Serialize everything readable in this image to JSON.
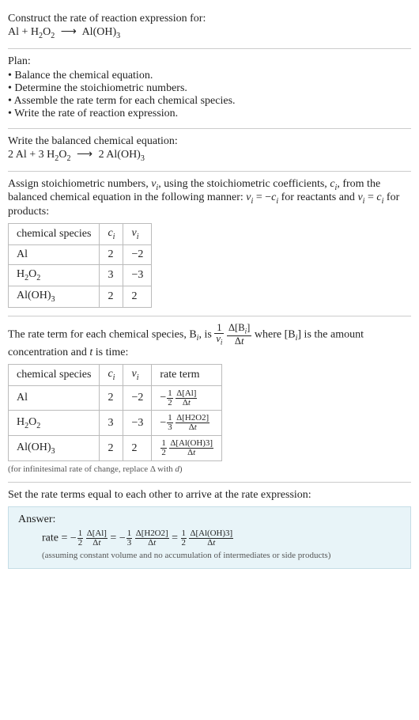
{
  "intro": {
    "prompt": "Construct the rate of reaction expression for:",
    "reactant1": "Al",
    "plus": " + ",
    "reactant2_base": "H",
    "reactant2_s1": "2",
    "reactant2_mid": "O",
    "reactant2_s2": "2",
    "arrow": "⟶",
    "product_base": "Al(OH)",
    "product_s": "3"
  },
  "plan": {
    "title": "Plan:",
    "items": [
      "Balance the chemical equation.",
      "Determine the stoichiometric numbers.",
      "Assemble the rate term for each chemical species.",
      "Write the rate of reaction expression."
    ]
  },
  "balanced": {
    "title": "Write the balanced chemical equation:",
    "c1": "2 ",
    "r1": "Al",
    "plus1": " + ",
    "c2": "3 ",
    "r2b": "H",
    "r2s1": "2",
    "r2m": "O",
    "r2s2": "2",
    "arrow": "⟶",
    "c3": "2 ",
    "pb": "Al(OH)",
    "ps": "3"
  },
  "stoich_text": {
    "p1": "Assign stoichiometric numbers, ",
    "nu": "ν",
    "i": "i",
    "p2": ", using the stoichiometric coefficients, ",
    "c": "c",
    "p3": ", from the balanced chemical equation in the following manner: ",
    "eq1a": "ν",
    "eq1b": "i",
    "eq1c": " = −",
    "eq1d": "c",
    "eq1e": "i",
    "p4": " for reactants and ",
    "eq2a": "ν",
    "eq2b": "i",
    "eq2c": " = ",
    "eq2d": "c",
    "eq2e": "i",
    "p5": " for products:"
  },
  "stoich_table": {
    "h1": "chemical species",
    "h2_a": "c",
    "h2_b": "i",
    "h3_a": "ν",
    "h3_b": "i",
    "rows": [
      {
        "sp_a": "Al",
        "sp_b": "",
        "sp_c": "",
        "sp_d": "",
        "c": "2",
        "v": "−2"
      },
      {
        "sp_a": "H",
        "sp_b": "2",
        "sp_c": "O",
        "sp_d": "2",
        "c": "3",
        "v": "−3"
      },
      {
        "sp_a": "Al(OH)",
        "sp_b": "3",
        "sp_c": "",
        "sp_d": "",
        "c": "2",
        "v": "2"
      }
    ]
  },
  "rateterm_text": {
    "p1": "The rate term for each chemical species, B",
    "i": "i",
    "p2": ", is ",
    "fr1n": "1",
    "fr1d_a": "ν",
    "fr1d_b": "i",
    "fr2n": "Δ[B",
    "fr2n_i": "i",
    "fr2n_end": "]",
    "fr2d": "Δ",
    "fr2d_t": "t",
    "p3": " where [B",
    "p3i": "i",
    "p3end": "] is the amount concentration and ",
    "t": "t",
    "p4": " is time:"
  },
  "rate_table": {
    "h1": "chemical species",
    "h2_a": "c",
    "h2_b": "i",
    "h3_a": "ν",
    "h3_b": "i",
    "h4": "rate term",
    "rows": [
      {
        "sp_a": "Al",
        "sp_b": "",
        "sp_c": "",
        "sp_d": "",
        "c": "2",
        "v": "−2",
        "neg": "−",
        "fn": "1",
        "fd": "2",
        "dn": "Δ[Al]",
        "dd_a": "Δ",
        "dd_t": "t"
      },
      {
        "sp_a": "H",
        "sp_b": "2",
        "sp_c": "O",
        "sp_d": "2",
        "c": "3",
        "v": "−3",
        "neg": "−",
        "fn": "1",
        "fd": "3",
        "dn": "Δ[H2O2]",
        "dd_a": "Δ",
        "dd_t": "t"
      },
      {
        "sp_a": "Al(OH)",
        "sp_b": "3",
        "sp_c": "",
        "sp_d": "",
        "c": "2",
        "v": "2",
        "neg": "",
        "fn": "1",
        "fd": "2",
        "dn": "Δ[Al(OH)3]",
        "dd_a": "Δ",
        "dd_t": "t"
      }
    ],
    "note": "(for infinitesimal rate of change, replace Δ with ",
    "note_d": "d",
    "note_end": ")"
  },
  "final_text": "Set the rate terms equal to each other to arrive at the rate expression:",
  "answer": {
    "hdr": "Answer:",
    "rate": "rate = ",
    "t1_neg": "−",
    "t1_fn": "1",
    "t1_fd": "2",
    "t1_dn": "Δ[Al]",
    "t1_dd_a": "Δ",
    "t1_dd_t": "t",
    "eq": " = ",
    "t2_neg": "−",
    "t2_fn": "1",
    "t2_fd": "3",
    "t2_dn": "Δ[H2O2]",
    "t2_dd_a": "Δ",
    "t2_dd_t": "t",
    "t3_neg": "",
    "t3_fn": "1",
    "t3_fd": "2",
    "t3_dn": "Δ[Al(OH)3]",
    "t3_dd_a": "Δ",
    "t3_dd_t": "t",
    "note": "(assuming constant volume and no accumulation of intermediates or side products)"
  }
}
